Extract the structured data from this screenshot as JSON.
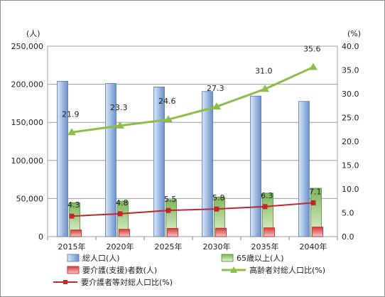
{
  "chart_data": {
    "type": "bar",
    "categories": [
      "2015年",
      "2020年",
      "2025年",
      "2030年",
      "2035年",
      "2040年"
    ],
    "series": [
      {
        "name": "総人口(人)",
        "kind": "bar",
        "axis": "left",
        "values": [
          204000,
          201000,
          196500,
          190500,
          184500,
          177500
        ]
      },
      {
        "name": "65歳以上(人)",
        "kind": "bar",
        "axis": "left",
        "values": [
          44500,
          46500,
          48500,
          52000,
          57000,
          63500
        ]
      },
      {
        "name": "要介護(支援)者数(人)",
        "kind": "bar",
        "axis": "left",
        "values": [
          8700,
          9600,
          10800,
          11000,
          11500,
          12500
        ]
      },
      {
        "name": "高齢者対総人口比(%)",
        "kind": "line",
        "axis": "right",
        "values": [
          21.9,
          23.3,
          24.6,
          27.3,
          31.0,
          35.6
        ],
        "labels": [
          "21.9",
          "23.3",
          "24.6",
          "27.3",
          "31.0",
          "35.6"
        ]
      },
      {
        "name": "要介護者等対総人口比(%)",
        "kind": "line",
        "axis": "right",
        "values": [
          4.3,
          4.8,
          5.5,
          5.8,
          6.3,
          7.1
        ],
        "labels": [
          "4.3",
          "4.8",
          "5.5",
          "5.8",
          "6.3",
          "7.1"
        ]
      }
    ],
    "y_left": {
      "unit": "(人)",
      "ylim": [
        0,
        250000
      ],
      "ticks": [
        "0",
        "50,000",
        "100,000",
        "150,000",
        "200,000",
        "250,000"
      ]
    },
    "y_right": {
      "unit": "(%)",
      "ylim": [
        0,
        40
      ],
      "ticks": [
        "0.0",
        "5.0",
        "10.0",
        "15.0",
        "20.0",
        "25.0",
        "30.0",
        "35.0",
        "40.0"
      ]
    },
    "grid": true,
    "legend_position": "bottom",
    "colors": {
      "total_bar": "#9bb7e0",
      "senior_bar": "#8fc06a",
      "care_bar": "#e04a4a",
      "senior_line": "#8cbf4a",
      "care_line": "#c0282a",
      "gridline": "#a0a0a0"
    }
  }
}
